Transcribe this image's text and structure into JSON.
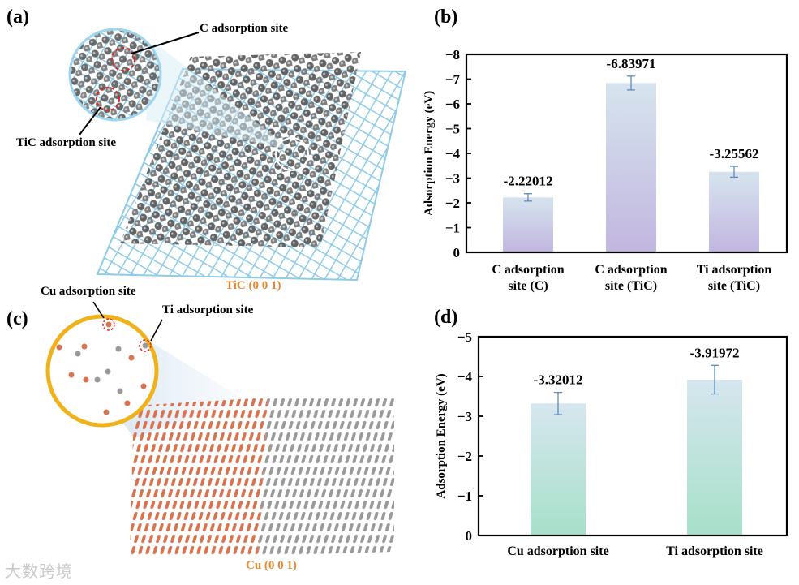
{
  "panels": {
    "a": {
      "label": "(a)",
      "annotation_c": "C adsorption site",
      "annotation_tic": "TiC adsorption site",
      "surface": "TiC (0 0 1)"
    },
    "b": {
      "label": "(b)"
    },
    "c": {
      "label": "(c)",
      "annotation_cu": "Cu adsorption site",
      "annotation_ti": "Ti adsorption site",
      "surface": "Cu (0 0 1)"
    },
    "d": {
      "label": "(d)"
    }
  },
  "watermark": "大数跨境",
  "colors": {
    "bar_b_top": "#d6e4ee",
    "bar_b_bottom": "#c2b6e0",
    "bar_d_top": "#d6e6ef",
    "bar_d_bottom": "#a7e0c9",
    "tic_lattice": "#8ecbe8",
    "carbon": "#5a5a5a",
    "copper": "#d9734f",
    "titanium": "#9a9a9a",
    "highlight_ring": "#f0b21a",
    "marker_red": "#d92a2a"
  },
  "chart_data": [
    {
      "panel": "b",
      "type": "bar",
      "categories": [
        "C adsorption site (C)",
        "C adsorption site (TiC)",
        "Ti adsorption site (TiC)"
      ],
      "category_lines": [
        [
          "C adsorption",
          "site (C)"
        ],
        [
          "C adsorption",
          "site (TiC)"
        ],
        [
          "Ti adsorption",
          "site (TiC)"
        ]
      ],
      "values": [
        -2.22012,
        -6.83971,
        -3.25562
      ],
      "value_labels": [
        "-2.22012",
        "-6.83971",
        "-3.25562"
      ],
      "errors": [
        0.15,
        0.28,
        0.22
      ],
      "ylabel": "Adsorption Energy (eV)",
      "ylim": [
        0,
        -8
      ],
      "yticks": [
        0,
        -1,
        -2,
        -3,
        -4,
        -5,
        -6,
        -7,
        -8
      ],
      "ytick_labels": [
        "0",
        "−1",
        "−2",
        "−3",
        "−4",
        "−5",
        "−6",
        "−7",
        "−8"
      ],
      "inverted_axis": true,
      "grid": false
    },
    {
      "panel": "d",
      "type": "bar",
      "categories": [
        "Cu adsorption site",
        "Ti adsorption site"
      ],
      "category_lines": [
        [
          "Cu adsorption site"
        ],
        [
          "Ti adsorption site"
        ]
      ],
      "values": [
        -3.32012,
        -3.91972
      ],
      "value_labels": [
        "-3.32012",
        "-3.91972"
      ],
      "errors": [
        0.28,
        0.36
      ],
      "ylabel": "Adsorption Energy (eV)",
      "ylim": [
        0,
        -5
      ],
      "yticks": [
        0,
        -1,
        -2,
        -3,
        -4,
        -5
      ],
      "ytick_labels": [
        "0",
        "−1",
        "−2",
        "−3",
        "−4",
        "−5"
      ],
      "inverted_axis": true,
      "grid": false
    }
  ]
}
